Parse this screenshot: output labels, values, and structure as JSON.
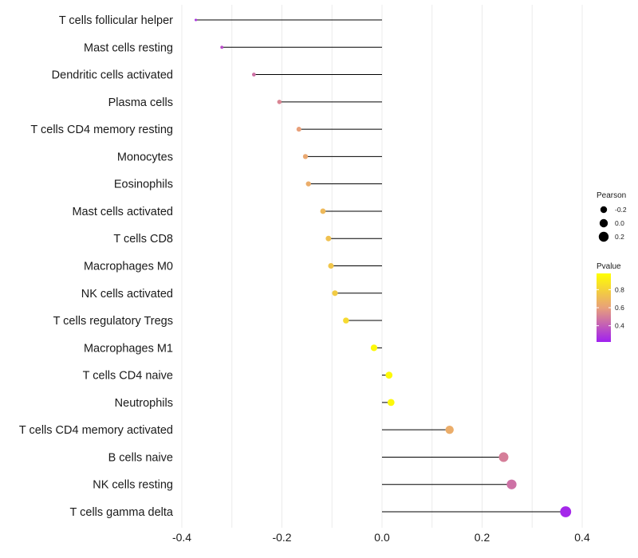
{
  "chart_data": {
    "type": "lollipop",
    "title": "",
    "xlabel": "",
    "ylabel": "",
    "xlim": [
      -0.4,
      0.4
    ],
    "xticks": [
      -0.4,
      -0.2,
      0.0,
      0.2,
      0.4
    ],
    "xtick_labels": [
      "-0.4",
      "-0.2",
      "0.0",
      "0.2",
      "0.4"
    ],
    "grid": true,
    "categories": [
      "T cells follicular helper",
      "Mast cells resting",
      "Dendritic cells activated",
      "Plasma cells",
      "T cells CD4 memory resting",
      "Monocytes",
      "Eosinophils",
      "Mast cells activated",
      "T cells CD8",
      "Macrophages M0",
      "NK cells activated",
      "T cells regulatory  Tregs ",
      "Macrophages M1",
      "T cells CD4 naive",
      "Neutrophils",
      "T cells CD4 memory activated",
      "B cells naive",
      "NK cells resting",
      "T cells gamma delta"
    ],
    "pearson": [
      -0.372,
      -0.32,
      -0.256,
      -0.205,
      -0.166,
      -0.153,
      -0.147,
      -0.118,
      -0.107,
      -0.102,
      -0.094,
      -0.072,
      -0.016,
      0.014,
      0.018,
      0.135,
      0.243,
      0.259,
      0.367
    ],
    "pvalue": [
      0.28,
      0.35,
      0.46,
      0.52,
      0.6,
      0.63,
      0.65,
      0.7,
      0.73,
      0.75,
      0.77,
      0.83,
      0.95,
      0.96,
      0.95,
      0.65,
      0.5,
      0.46,
      0.24
    ],
    "legend": {
      "size_title": "Pearson",
      "size_labels": [
        "-0.2",
        "0.0",
        "0.2"
      ],
      "size_values": [
        -0.2,
        0.0,
        0.2
      ],
      "color_title": "Pvalue",
      "color_labels": [
        "0.8",
        "0.6",
        "0.4"
      ],
      "color_values": [
        0.8,
        0.6,
        0.4
      ],
      "color_range": [
        0.22,
        0.98
      ],
      "color_low": "#a020f0",
      "color_mid": "#e8a07a",
      "color_high": "#ffff00",
      "placement": "right"
    }
  }
}
